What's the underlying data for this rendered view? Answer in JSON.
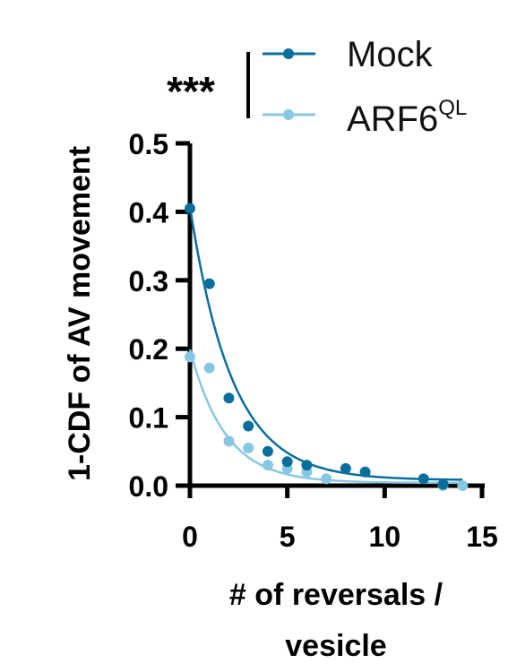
{
  "chart_data": {
    "type": "scatter",
    "xlabel_lines": [
      "# of reversals /",
      "vesicle"
    ],
    "ylabel": "1-CDF of AV movement",
    "xlim": [
      0,
      15
    ],
    "ylim": [
      0,
      0.5
    ],
    "x_ticks": [
      0,
      5,
      10,
      15
    ],
    "x_tick_labels": [
      "0",
      "5",
      "10",
      "15"
    ],
    "y_ticks": [
      0,
      0.1,
      0.2,
      0.3,
      0.4,
      0.5
    ],
    "y_tick_labels": [
      "0.0",
      "0.1",
      "0.2",
      "0.3",
      "0.4",
      "0.5"
    ],
    "grid": false,
    "legend_position": "top-right",
    "significance": "***",
    "series": [
      {
        "name": "Mock",
        "legend_main": "Mock",
        "legend_sup": "",
        "color": "#0a6e9c",
        "x": [
          0,
          1,
          2,
          3,
          4,
          5,
          6,
          8,
          9,
          12,
          13
        ],
        "y": [
          0.405,
          0.295,
          0.128,
          0.087,
          0.05,
          0.035,
          0.03,
          0.025,
          0.02,
          0.01,
          0.002
        ],
        "fit": {
          "model": "exponential",
          "a": 0.4,
          "k": 0.46,
          "c": 0.008
        }
      },
      {
        "name": "ARF6QL",
        "legend_main": "ARF6",
        "legend_sup": "QL",
        "color": "#88c7e4",
        "x": [
          0,
          1,
          2,
          3,
          4,
          5,
          6,
          7,
          13,
          14
        ],
        "y": [
          0.188,
          0.172,
          0.065,
          0.055,
          0.03,
          0.025,
          0.02,
          0.01,
          0.0,
          0.0
        ],
        "fit": {
          "model": "exponential",
          "a": 0.195,
          "k": 0.55,
          "c": 0.004
        }
      }
    ]
  }
}
